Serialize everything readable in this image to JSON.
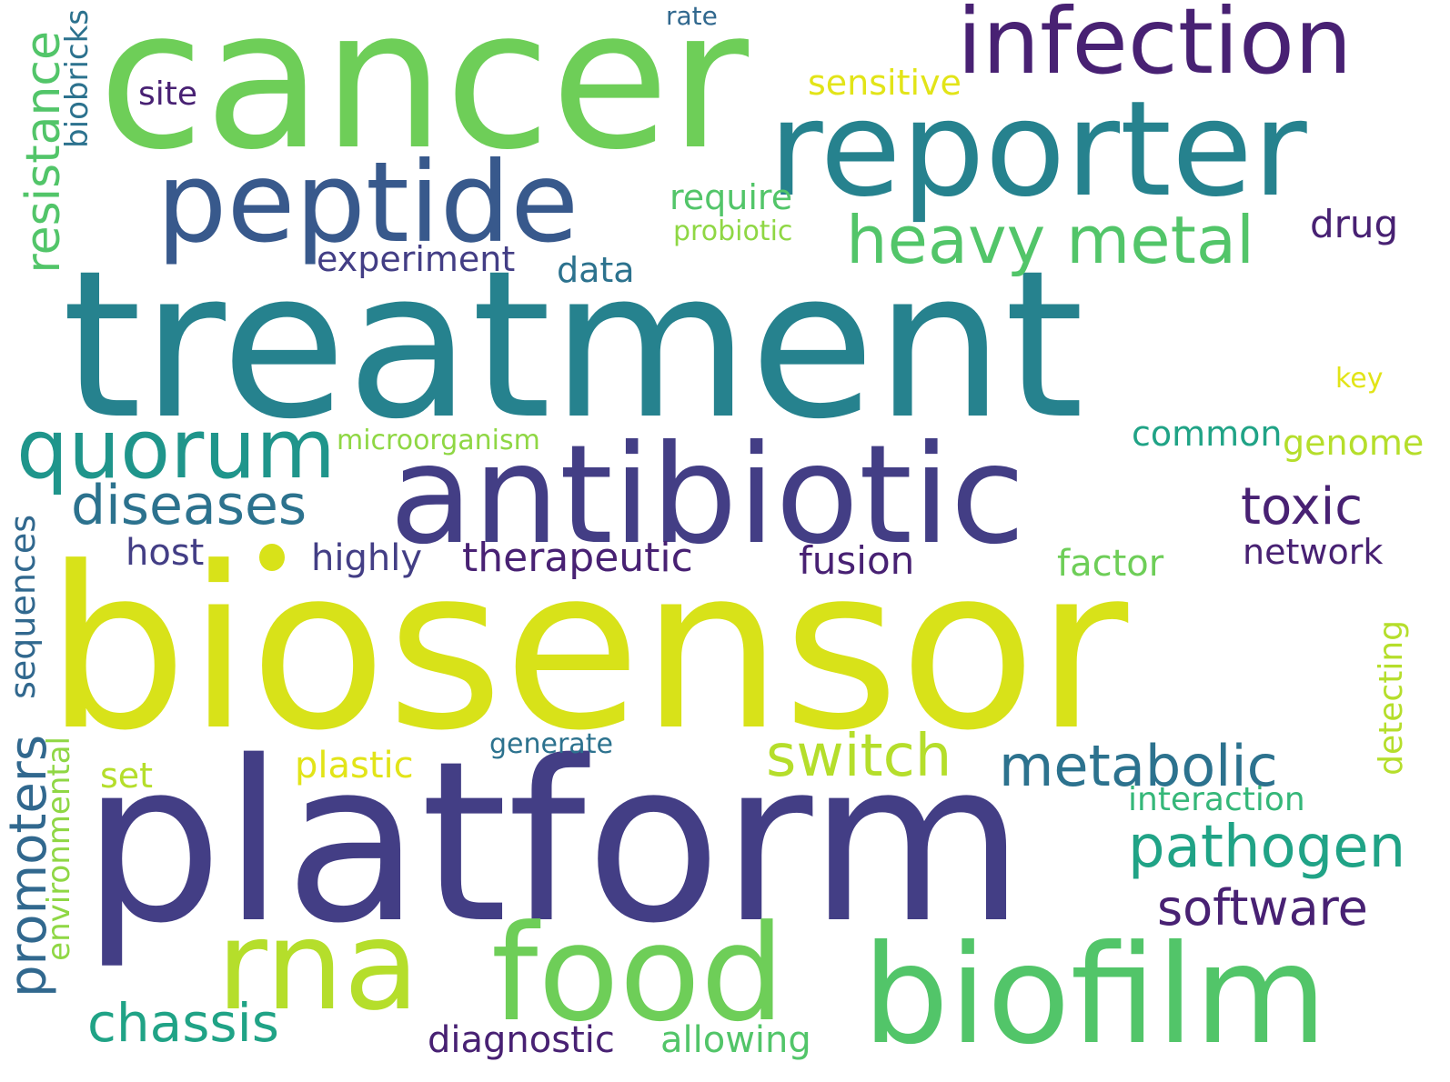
{
  "colors": {
    "background": "#ffffff",
    "dark_purple": "#482173",
    "indigo": "#433e85",
    "blue": "#38598c",
    "blue_teal": "#31688e",
    "teal": "#2c728e",
    "teal2": "#26828e",
    "teal3": "#1f958b",
    "green_teal": "#20a386",
    "green": "#35b779",
    "green2": "#52c569",
    "light_green": "#6ece58",
    "lime": "#8fd744",
    "yellow_green": "#b5de2b",
    "yellow": "#d8e219",
    "bright_yellow": "#e2e418"
  },
  "words": [
    {
      "text": "treatment",
      "color": "#26828e"
    },
    {
      "text": "biosensor",
      "color": "#d8e219"
    },
    {
      "text": "platform",
      "color": "#433e85"
    },
    {
      "text": "cancer",
      "color": "#6ece58"
    },
    {
      "text": "antibiotic",
      "color": "#433e85"
    },
    {
      "text": "reporter",
      "color": "#26828e"
    },
    {
      "text": "biofilm",
      "color": "#52c569"
    },
    {
      "text": "food",
      "color": "#6ece58"
    },
    {
      "text": "rna",
      "color": "#b5de2b"
    },
    {
      "text": "peptide",
      "color": "#38598c"
    },
    {
      "text": "infection",
      "color": "#482173"
    },
    {
      "text": "quorum",
      "color": "#1f958b"
    },
    {
      "text": "heavy metal",
      "color": "#52c569"
    },
    {
      "text": "diseases",
      "color": "#2c728e"
    },
    {
      "text": "resistance",
      "color": "#52c569"
    },
    {
      "text": "switch",
      "color": "#b5de2b"
    },
    {
      "text": "metabolic",
      "color": "#2c728e"
    },
    {
      "text": "pathogen",
      "color": "#20a386"
    },
    {
      "text": "software",
      "color": "#482173"
    },
    {
      "text": "promoters",
      "color": "#31688e"
    },
    {
      "text": "chassis",
      "color": "#20a386"
    },
    {
      "text": "toxic",
      "color": "#482173"
    },
    {
      "text": "therapeutic",
      "color": "#482173"
    },
    {
      "text": "experiment",
      "color": "#433e85"
    },
    {
      "text": "sequences",
      "color": "#31688e"
    },
    {
      "text": "environmental",
      "color": "#8fd744"
    },
    {
      "text": "detecting",
      "color": "#b5de2b"
    },
    {
      "text": "allowing",
      "color": "#52c569"
    },
    {
      "text": "diagnostic",
      "color": "#482173"
    },
    {
      "text": "fusion",
      "color": "#482173"
    },
    {
      "text": "plastic",
      "color": "#e2e418"
    },
    {
      "text": "network",
      "color": "#482173"
    },
    {
      "text": "host",
      "color": "#433e85"
    },
    {
      "text": "highly",
      "color": "#433e85"
    },
    {
      "text": "drug",
      "color": "#482173"
    },
    {
      "text": "common",
      "color": "#20a386"
    },
    {
      "text": "genome",
      "color": "#b5de2b"
    },
    {
      "text": "interaction",
      "color": "#35b779"
    },
    {
      "text": "factor",
      "color": "#6ece58"
    },
    {
      "text": "biobricks",
      "color": "#2c728e"
    },
    {
      "text": "sensitive",
      "color": "#e2e418"
    },
    {
      "text": "require",
      "color": "#52c569"
    },
    {
      "text": "data",
      "color": "#2c728e"
    },
    {
      "text": "site",
      "color": "#482173"
    },
    {
      "text": "set",
      "color": "#b5de2b"
    },
    {
      "text": "microorganism",
      "color": "#8fd744"
    },
    {
      "text": "probiotic",
      "color": "#8fd744"
    },
    {
      "text": "generate",
      "color": "#2c728e"
    },
    {
      "text": "rate",
      "color": "#31688e"
    },
    {
      "text": "key",
      "color": "#e2e418"
    }
  ],
  "dot_color": "#d8e219"
}
